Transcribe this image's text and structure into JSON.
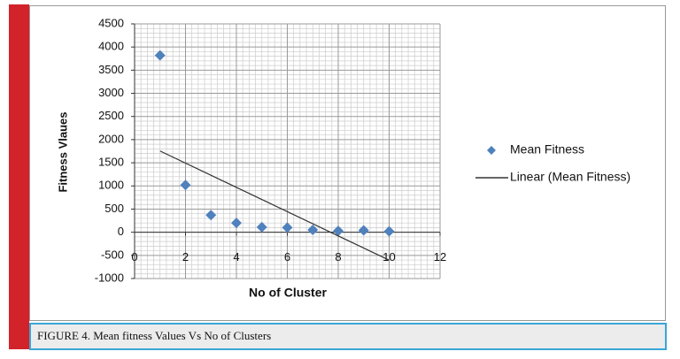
{
  "chart_data": {
    "type": "scatter",
    "x_label": "No of Cluster",
    "y_label": "Fitness Vlaues",
    "xlim": [
      0,
      12
    ],
    "xticks": [
      0,
      2,
      4,
      6,
      8,
      10,
      12
    ],
    "ylim": [
      -1000,
      4500
    ],
    "yticks": [
      -1000,
      -500,
      0,
      500,
      1000,
      1500,
      2000,
      2500,
      3000,
      3500,
      4000,
      4500
    ],
    "grid": true,
    "legend": "right",
    "series": [
      {
        "name": "Mean Fitness",
        "color": "#4f81bd",
        "marker": "diamond",
        "x": [
          1,
          2,
          3,
          4,
          5,
          6,
          7,
          8,
          9,
          10
        ],
        "values": [
          3820,
          1020,
          370,
          200,
          110,
          100,
          50,
          30,
          40,
          20
        ]
      },
      {
        "name": "Linear (Mean Fitness)",
        "color": "#333333",
        "marker": "line",
        "x": [
          1,
          10
        ],
        "values": [
          1755,
          -603
        ]
      }
    ]
  },
  "caption": "FIGURE 4. Mean fitness Values Vs No of Clusters"
}
